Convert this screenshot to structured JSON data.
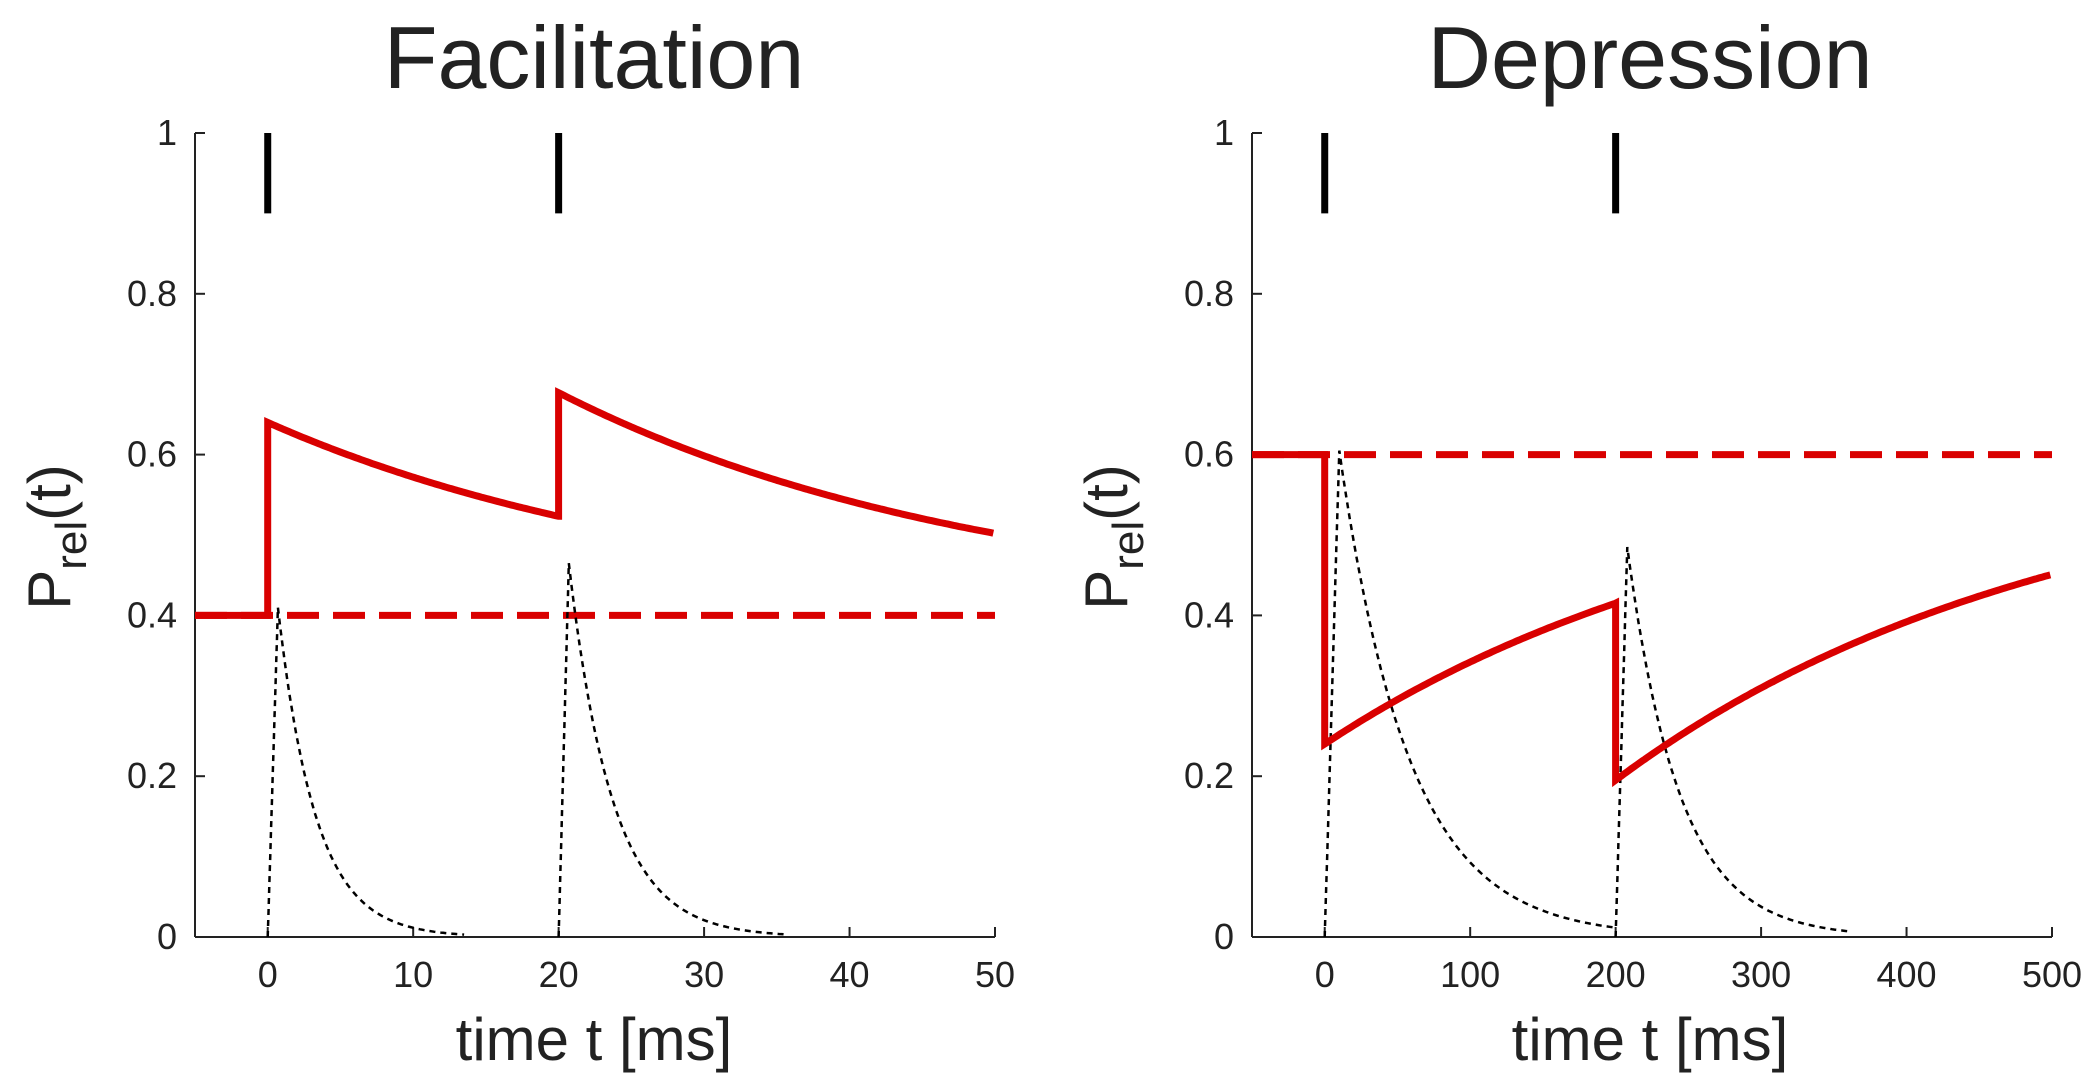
{
  "colors": {
    "model": "#d90000",
    "baseline": "#d90000",
    "axis": "#222222",
    "text": "#222222",
    "trace": "#000000"
  },
  "chart_data": [
    {
      "type": "line",
      "title": "Facilitation",
      "xlabel": "time t [ms]",
      "ylabel": {
        "main": "P",
        "sub": "rel",
        "suffix": "(t)"
      },
      "xlim": [
        -5,
        50
      ],
      "ylim": [
        0,
        1
      ],
      "xticks": [
        "0",
        "10",
        "20",
        "30",
        "40",
        "50"
      ],
      "xtick_values": [
        0,
        10,
        20,
        30,
        40,
        50
      ],
      "yticks": [
        "0",
        "0.2",
        "0.4",
        "0.6",
        "0.8",
        "1"
      ],
      "ytick_values": [
        0,
        0.2,
        0.4,
        0.6,
        0.8,
        1
      ],
      "spikes": [
        0,
        20
      ],
      "spike_marker_range": [
        0.9,
        1.0
      ],
      "baseline": 0.4,
      "series": [
        {
          "style": "solid",
          "x": [
            -5,
            0,
            0,
            20,
            20,
            50
          ],
          "kind": "facilitation",
          "p0": 0.4,
          "jumps": [
            0.64,
            0.677
          ],
          "tau": 30
        }
      ],
      "traces": [
        {
          "start": 0,
          "peak_time": 0.7,
          "peak": 0.41,
          "tau": 2.6,
          "end": 13.5
        },
        {
          "start": 20,
          "peak_time": 20.7,
          "peak": 0.465,
          "tau": 3.0,
          "end": 35.5
        }
      ],
      "grid": false
    },
    {
      "type": "line",
      "title": "Depression",
      "xlabel": "time t [ms]",
      "ylabel": {
        "main": "P",
        "sub": "rel",
        "suffix": "(t)"
      },
      "xlim": [
        -50,
        500
      ],
      "ylim": [
        0,
        1
      ],
      "xticks": [
        "0",
        "100",
        "200",
        "300",
        "400",
        "500"
      ],
      "xtick_values": [
        0,
        100,
        200,
        300,
        400,
        500
      ],
      "yticks": [
        "0",
        "0.2",
        "0.4",
        "0.6",
        "0.8",
        "1"
      ],
      "ytick_values": [
        0,
        0.2,
        0.4,
        0.6,
        0.8,
        1
      ],
      "spikes": [
        0,
        200
      ],
      "spike_marker_range": [
        0.9,
        1.0
      ],
      "baseline": 0.6,
      "series": [
        {
          "style": "solid",
          "kind": "depression",
          "p0": 0.6,
          "drops": [
            0.24,
            0.195
          ],
          "tau": 300
        }
      ],
      "traces": [
        {
          "start": 0,
          "peak_time": 10,
          "peak": 0.605,
          "tau": 48,
          "end": 200
        },
        {
          "start": 200,
          "peak_time": 208,
          "peak": 0.485,
          "tau": 36,
          "end": 360
        }
      ],
      "grid": false
    }
  ]
}
